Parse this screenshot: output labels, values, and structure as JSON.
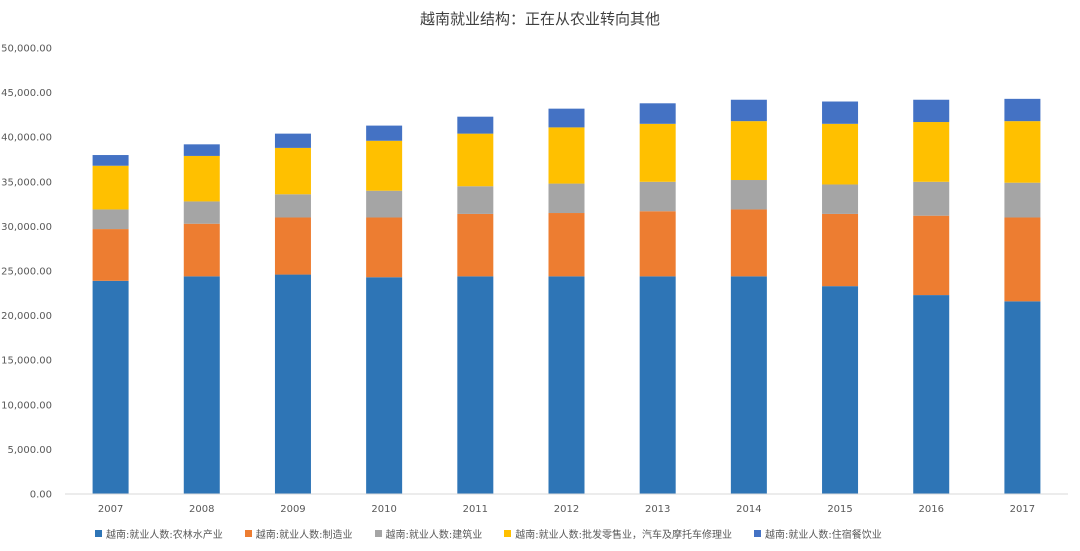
{
  "chart_data": {
    "type": "bar",
    "stacked": true,
    "title": "越南就业结构：正在从农业转向其他",
    "xlabel": "",
    "ylabel": "",
    "ylim": [
      0,
      50000
    ],
    "y_ticks": [
      "0.00",
      "5,000.00",
      "10,000.00",
      "15,000.00",
      "20,000.00",
      "25,000.00",
      "30,000.00",
      "35,000.00",
      "40,000.00",
      "45,000.00",
      "50,000.00"
    ],
    "categories": [
      "2007",
      "2008",
      "2009",
      "2010",
      "2011",
      "2012",
      "2013",
      "2014",
      "2015",
      "2016",
      "2017"
    ],
    "grid": false,
    "legend_position": "bottom",
    "series": [
      {
        "name": "越南:就业人数:农林水产业",
        "color": "#2E75B6",
        "values": [
          23900,
          24400,
          24600,
          24300,
          24400,
          24400,
          24400,
          24400,
          23300,
          22300,
          21600
        ]
      },
      {
        "name": "越南:就业人数:制造业",
        "color": "#ED7D31",
        "values": [
          5800,
          5900,
          6400,
          6700,
          7000,
          7100,
          7300,
          7500,
          8100,
          8900,
          9400
        ]
      },
      {
        "name": "越南:就业人数:建筑业",
        "color": "#A5A5A5",
        "values": [
          2200,
          2500,
          2600,
          3000,
          3100,
          3300,
          3300,
          3300,
          3300,
          3800,
          3900
        ]
      },
      {
        "name": "越南:就业人数:批发零售业，汽车及摩托车修理业",
        "color": "#FFC000",
        "values": [
          4900,
          5100,
          5200,
          5600,
          5900,
          6300,
          6500,
          6600,
          6800,
          6700,
          6900
        ]
      },
      {
        "name": "越南:就业人数:住宿餐饮业",
        "color": "#4472C4",
        "values": [
          1200,
          1300,
          1600,
          1700,
          1900,
          2100,
          2300,
          2400,
          2500,
          2500,
          2500
        ]
      }
    ]
  }
}
